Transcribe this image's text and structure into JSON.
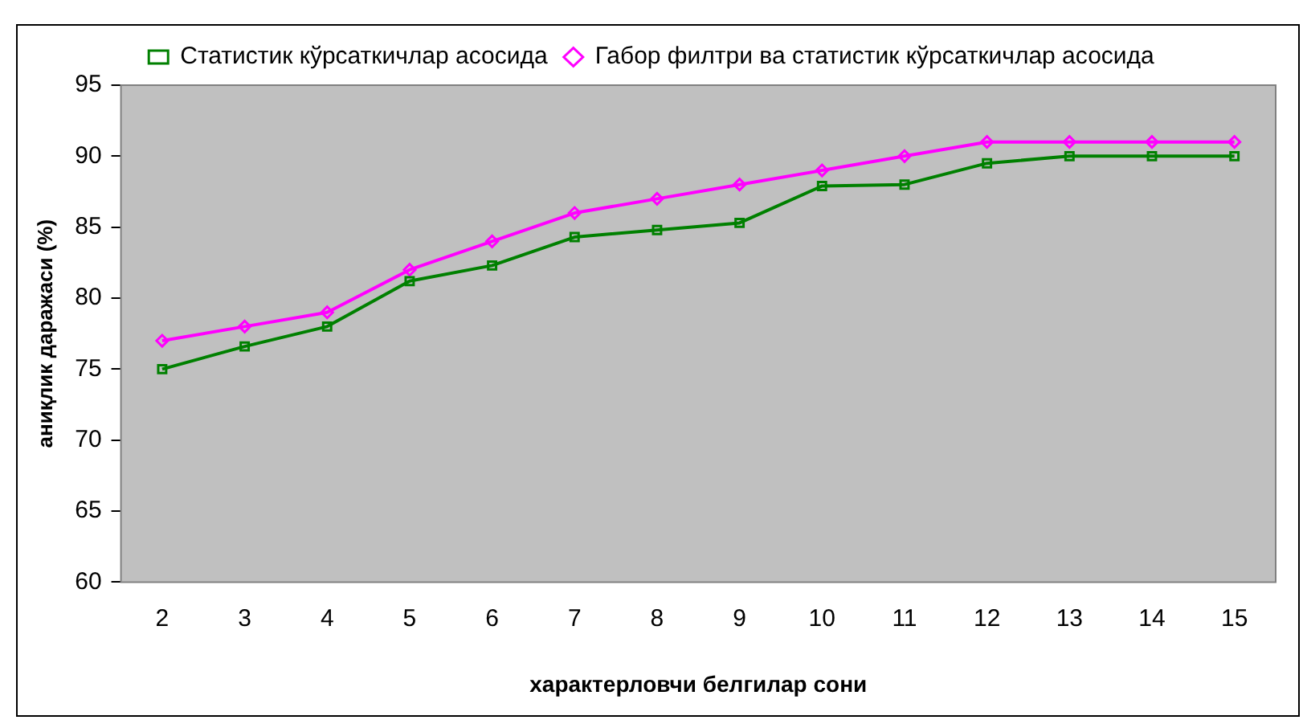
{
  "chart_data": {
    "type": "line",
    "xlabel": "характерловчи белгилар сони",
    "ylabel": "аниқлик даражаси (%)",
    "categories": [
      "2",
      "3",
      "4",
      "5",
      "6",
      "7",
      "8",
      "9",
      "10",
      "11",
      "12",
      "13",
      "14",
      "15"
    ],
    "series": [
      {
        "name": "Статистик кўрсаткичлар асосида",
        "color": "#008000",
        "marker": "square",
        "values": [
          75,
          76.6,
          78,
          81.2,
          82.3,
          84.3,
          84.8,
          85.3,
          87.9,
          88,
          89.5,
          90,
          90,
          90
        ]
      },
      {
        "name": "Габор филтри ва статистик кўрсаткичлар асосида",
        "color": "#ff00ff",
        "marker": "diamond",
        "values": [
          77,
          78,
          79,
          82,
          84,
          86,
          87,
          88,
          89,
          90,
          91,
          91,
          91,
          91
        ]
      }
    ],
    "ylim": [
      60,
      95
    ],
    "yticks": [
      60,
      65,
      70,
      75,
      80,
      85,
      90,
      95
    ],
    "grid": false,
    "legend": "top",
    "line_style": "solid"
  }
}
